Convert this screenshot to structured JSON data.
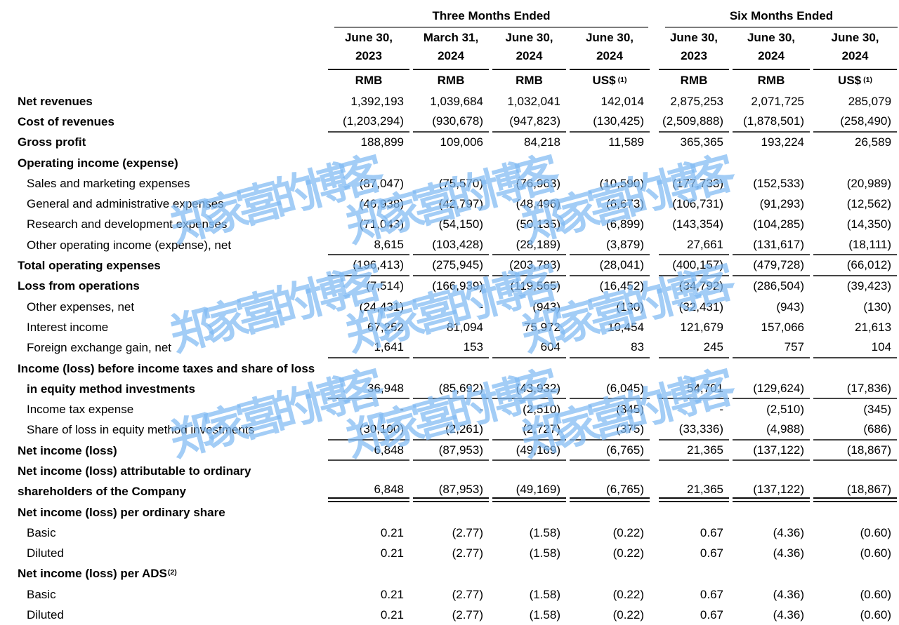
{
  "watermark": {
    "text": "郑家喜的博客",
    "color": "rgba(128,186,242,0.72)"
  },
  "header": {
    "groups": [
      {
        "label": "Three Months Ended",
        "span": 4
      },
      {
        "label": "Six Months Ended",
        "span": 3
      }
    ],
    "columns": [
      {
        "date_line1": "June 30,",
        "date_line2": "2023",
        "currency": "RMB",
        "sup": ""
      },
      {
        "date_line1": "March 31,",
        "date_line2": "2024",
        "currency": "RMB",
        "sup": ""
      },
      {
        "date_line1": "June 30,",
        "date_line2": "2024",
        "currency": "RMB",
        "sup": ""
      },
      {
        "date_line1": "June 30,",
        "date_line2": "2024",
        "currency": "US$",
        "sup": "(1)"
      },
      {
        "date_line1": "June 30,",
        "date_line2": "2023",
        "currency": "RMB",
        "sup": ""
      },
      {
        "date_line1": "June 30,",
        "date_line2": "2024",
        "currency": "RMB",
        "sup": ""
      },
      {
        "date_line1": "June 30,",
        "date_line2": "2024",
        "currency": "US$",
        "sup": "(1)"
      }
    ]
  },
  "rows": [
    {
      "label": "Net revenues",
      "bold": true,
      "indent": false,
      "values": [
        "1,392,193",
        "1,039,684",
        "1,032,041",
        "142,014",
        "2,875,253",
        "2,071,725",
        "285,079"
      ]
    },
    {
      "label": "Cost of revenues",
      "bold": true,
      "indent": false,
      "rule": "single",
      "values": [
        "(1,203,294)",
        "(930,678)",
        "(947,823)",
        "(130,425)",
        "(2,509,888)",
        "(1,878,501)",
        "(258,490)"
      ]
    },
    {
      "label": "Gross profit",
      "bold": true,
      "indent": false,
      "values": [
        "188,899",
        "109,006",
        "84,218",
        "11,589",
        "365,365",
        "193,224",
        "26,589"
      ]
    },
    {
      "label": "Operating income (expense)",
      "bold": true,
      "indent": false,
      "values": []
    },
    {
      "label": "Sales and marketing expenses",
      "bold": false,
      "indent": true,
      "values": [
        "(87,047)",
        "(75,570)",
        "(76,963)",
        "(10,590)",
        "(177,733)",
        "(152,533)",
        "(20,989)"
      ]
    },
    {
      "label": "General and administrative expenses",
      "bold": false,
      "indent": true,
      "values": [
        "(46,938)",
        "(42,797)",
        "(48,496)",
        "(6,673)",
        "(106,731)",
        "(91,293)",
        "(12,562)"
      ]
    },
    {
      "label": "Research and development expenses",
      "bold": false,
      "indent": true,
      "values": [
        "(71,043)",
        "(54,150)",
        "(50,135)",
        "(6,899)",
        "(143,354)",
        "(104,285)",
        "(14,350)"
      ]
    },
    {
      "label": "Other operating income (expense), net",
      "bold": false,
      "indent": true,
      "rule": "single",
      "values": [
        "8,615",
        "(103,428)",
        "(28,189)",
        "(3,879)",
        "27,661",
        "(131,617)",
        "(18,111)"
      ]
    },
    {
      "label": "Total operating expenses",
      "bold": true,
      "indent": false,
      "rule": "single",
      "values": [
        "(196,413)",
        "(275,945)",
        "(203,783)",
        "(28,041)",
        "(400,157)",
        "(479,728)",
        "(66,012)"
      ]
    },
    {
      "label": "Loss from operations",
      "bold": true,
      "indent": false,
      "values": [
        "(7,514)",
        "(166,939)",
        "(119,565)",
        "(16,452)",
        "(34,792)",
        "(286,504)",
        "(39,423)"
      ]
    },
    {
      "label": "Other expenses, net",
      "bold": false,
      "indent": true,
      "values": [
        "(24,431)",
        "-",
        "(943)",
        "(130)",
        "(32,431)",
        "(943)",
        "(130)"
      ]
    },
    {
      "label": "Interest income",
      "bold": false,
      "indent": true,
      "values": [
        "67,252",
        "81,094",
        "75,972",
        "10,454",
        "121,679",
        "157,066",
        "21,613"
      ]
    },
    {
      "label": "Foreign exchange gain, net",
      "bold": false,
      "indent": true,
      "rule": "single",
      "values": [
        "1,641",
        "153",
        "604",
        "83",
        "245",
        "757",
        "104"
      ]
    },
    {
      "label": "Income (loss) before income taxes and share of loss",
      "bold": true,
      "indent": false,
      "values": []
    },
    {
      "label": "in equity method investments",
      "bold": true,
      "indent": true,
      "rule": "single",
      "values": [
        "36,948",
        "(85,692)",
        "(43,932)",
        "(6,045)",
        "54,701",
        "(129,624)",
        "(17,836)"
      ]
    },
    {
      "label": "Income tax expense",
      "bold": false,
      "indent": true,
      "values": [
        "-",
        "-",
        "(2,510)",
        "(345)",
        "-",
        "(2,510)",
        "(345)"
      ]
    },
    {
      "label": "Share of loss in equity method investments",
      "bold": false,
      "indent": true,
      "rule": "single",
      "values": [
        "(30,100)",
        "(2,261)",
        "(2,727)",
        "(375)",
        "(33,336)",
        "(4,988)",
        "(686)"
      ]
    },
    {
      "label": "Net income (loss)",
      "bold": true,
      "indent": false,
      "rule": "single",
      "values": [
        "6,848",
        "(87,953)",
        "(49,169)",
        "(6,765)",
        "21,365",
        "(137,122)",
        "(18,867)"
      ]
    },
    {
      "label": "Net income (loss) attributable to ordinary",
      "bold": true,
      "indent": false,
      "values": []
    },
    {
      "label": "shareholders of the Company",
      "bold": true,
      "indent": false,
      "rule": "double",
      "values": [
        "6,848",
        "(87,953)",
        "(49,169)",
        "(6,765)",
        "21,365",
        "(137,122)",
        "(18,867)"
      ]
    },
    {
      "label": "Net income (loss) per ordinary share",
      "bold": true,
      "indent": false,
      "values": []
    },
    {
      "label": "Basic",
      "bold": false,
      "indent": true,
      "values": [
        "0.21",
        "(2.77)",
        "(1.58)",
        "(0.22)",
        "0.67",
        "(4.36)",
        "(0.60)"
      ]
    },
    {
      "label": "Diluted",
      "bold": false,
      "indent": true,
      "values": [
        "0.21",
        "(2.77)",
        "(1.58)",
        "(0.22)",
        "0.67",
        "(4.36)",
        "(0.60)"
      ]
    },
    {
      "label": "Net income (loss) per ADS",
      "sup": "(2)",
      "bold": true,
      "indent": false,
      "values": []
    },
    {
      "label": "Basic",
      "bold": false,
      "indent": true,
      "values": [
        "0.21",
        "(2.77)",
        "(1.58)",
        "(0.22)",
        "0.67",
        "(4.36)",
        "(0.60)"
      ]
    },
    {
      "label": "Diluted",
      "bold": false,
      "indent": true,
      "values": [
        "0.21",
        "(2.77)",
        "(1.58)",
        "(0.22)",
        "0.67",
        "(4.36)",
        "(0.60)"
      ]
    }
  ]
}
